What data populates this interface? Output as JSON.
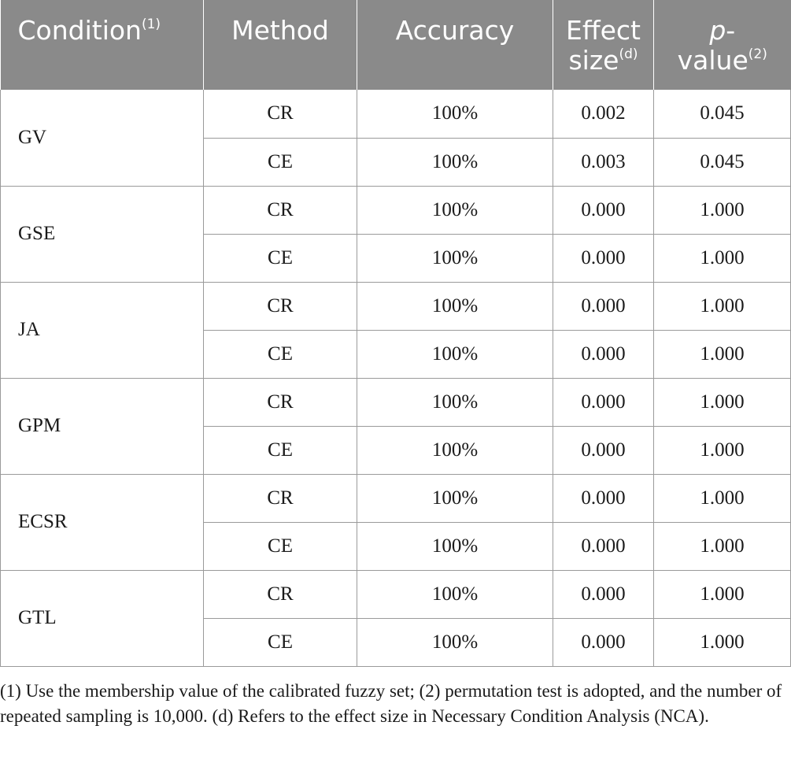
{
  "table": {
    "headers": {
      "condition": "Condition",
      "condition_note": "(1)",
      "method": "Method",
      "accuracy": "Accuracy",
      "effect_line1": "Effect",
      "effect_line2": "size",
      "effect_note": "(d)",
      "p_line1_italic": "p",
      "p_line1_rest": "-",
      "p_line2": "value",
      "p_note": "(2)"
    },
    "groups": [
      {
        "condition": "GV",
        "rows": [
          {
            "method": "CR",
            "accuracy": "100%",
            "effect": "0.002",
            "p": "0.045"
          },
          {
            "method": "CE",
            "accuracy": "100%",
            "effect": "0.003",
            "p": "0.045"
          }
        ]
      },
      {
        "condition": "GSE",
        "rows": [
          {
            "method": "CR",
            "accuracy": "100%",
            "effect": "0.000",
            "p": "1.000"
          },
          {
            "method": "CE",
            "accuracy": "100%",
            "effect": "0.000",
            "p": "1.000"
          }
        ]
      },
      {
        "condition": "JA",
        "rows": [
          {
            "method": "CR",
            "accuracy": "100%",
            "effect": "0.000",
            "p": "1.000"
          },
          {
            "method": "CE",
            "accuracy": "100%",
            "effect": "0.000",
            "p": "1.000"
          }
        ]
      },
      {
        "condition": "GPM",
        "rows": [
          {
            "method": "CR",
            "accuracy": "100%",
            "effect": "0.000",
            "p": "1.000"
          },
          {
            "method": "CE",
            "accuracy": "100%",
            "effect": "0.000",
            "p": "1.000"
          }
        ]
      },
      {
        "condition": "ECSR",
        "rows": [
          {
            "method": "CR",
            "accuracy": "100%",
            "effect": "0.000",
            "p": "1.000"
          },
          {
            "method": "CE",
            "accuracy": "100%",
            "effect": "0.000",
            "p": "1.000"
          }
        ]
      },
      {
        "condition": "GTL",
        "rows": [
          {
            "method": "CR",
            "accuracy": "100%",
            "effect": "0.000",
            "p": "1.000"
          },
          {
            "method": "CE",
            "accuracy": "100%",
            "effect": "0.000",
            "p": "1.000"
          }
        ]
      }
    ]
  },
  "footnote": "(1) Use the membership value of the calibrated fuzzy set; (2) permutation test is adopted, and the number of repeated sampling is 10,000. (d) Refers to the effect size in Necessary Condition Analysis (NCA).",
  "colors": {
    "header_bg": "#8a8a8a",
    "header_text": "#ffffff",
    "grid": "#9a9a9a",
    "body_text": "#1a1a1a"
  }
}
